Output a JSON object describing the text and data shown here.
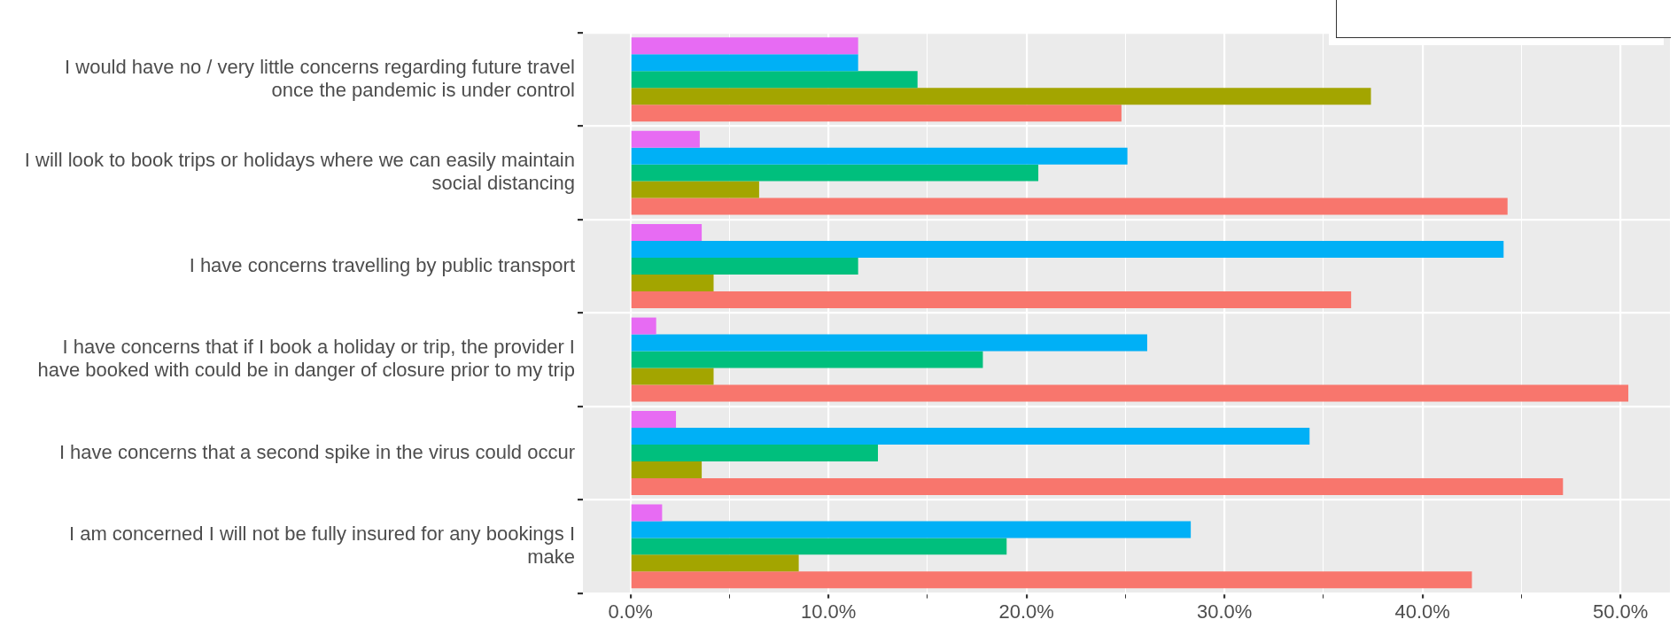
{
  "chart_data": {
    "type": "bar",
    "orientation": "horizontal",
    "categories": [
      "I would have no / very little concerns regarding future travel once the pandemic is under control",
      "I will look to book trips or holidays where we can easily maintain social distancing",
      "I have concerns travelling by public transport",
      "I have concerns that if I book a holiday or trip, the provider I have booked with could be in danger of closure prior to my trip",
      "I have concerns that a second spike in the virus could occur",
      "I am concerned I will not be fully insured for any bookings I make"
    ],
    "series": [
      {
        "color": "#e76bf3",
        "values": [
          11.5,
          3.5,
          3.6,
          1.3,
          2.3,
          1.6
        ]
      },
      {
        "color": "#00b0f6",
        "values": [
          11.5,
          25.1,
          44.1,
          26.1,
          34.3,
          28.3
        ]
      },
      {
        "color": "#00bf7d",
        "values": [
          14.5,
          20.6,
          11.5,
          17.8,
          12.5,
          19.0
        ]
      },
      {
        "color": "#a3a500",
        "values": [
          37.4,
          6.5,
          4.2,
          4.2,
          3.6,
          8.5
        ]
      },
      {
        "color": "#f8766d",
        "values": [
          24.8,
          44.3,
          36.4,
          50.4,
          47.1,
          42.5
        ]
      }
    ],
    "xlim": [
      -2.4,
      52.5
    ],
    "xticks": [
      {
        "value": 0,
        "label": "0.0%"
      },
      {
        "value": 5,
        "label": null
      },
      {
        "value": 10,
        "label": "10.0%"
      },
      {
        "value": 15,
        "label": null
      },
      {
        "value": 20,
        "label": "20.0%"
      },
      {
        "value": 25,
        "label": null
      },
      {
        "value": 30,
        "label": "30.0%"
      },
      {
        "value": 35,
        "label": null
      },
      {
        "value": 40,
        "label": "40.0%"
      },
      {
        "value": 45,
        "label": null
      },
      {
        "value": 50,
        "label": "50.0%"
      }
    ],
    "grid": true,
    "legend": false
  }
}
